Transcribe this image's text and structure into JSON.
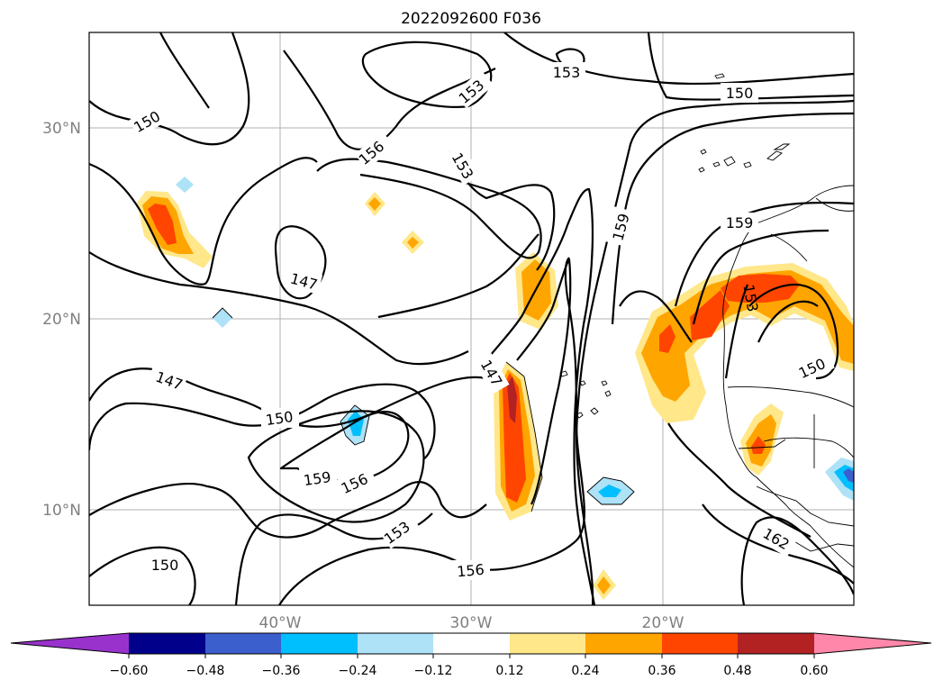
{
  "title": "2022092600 F036",
  "map": {
    "lat_range": [
      5,
      35
    ],
    "lon_range": [
      -50,
      -10
    ],
    "lat_labels": [
      {
        "lat": 30,
        "label": "30°N"
      },
      {
        "lat": 20,
        "label": "20°N"
      },
      {
        "lat": 10,
        "label": "10°N"
      }
    ],
    "lon_labels": [
      {
        "lon": -40,
        "label": "40°W"
      },
      {
        "lon": -30,
        "label": "30°W"
      },
      {
        "lon": -20,
        "label": "20°W"
      }
    ],
    "contour_labels": [
      "150",
      "153",
      "153",
      "150",
      "156",
      "153",
      "159",
      "159",
      "147",
      "147",
      "150",
      "159",
      "156",
      "153",
      "147",
      "156",
      "150",
      "150",
      "153",
      "162"
    ],
    "colors": {
      "cb_min": "#9932cc",
      "cb_1": "#00008b",
      "cb_2": "#3b5fcd",
      "cb_3": "#00bfff",
      "cb_4": "#ade2f7",
      "cb_5": "#ffffff",
      "cb_6": "#ffe78a",
      "cb_7": "#ffa500",
      "cb_8": "#ff4500",
      "cb_9": "#b22222",
      "cb_max": "#ff88aa"
    }
  },
  "colorbar": {
    "ticks": [
      "−0.60",
      "−0.48",
      "−0.36",
      "−0.24",
      "−0.12",
      "0.12",
      "0.24",
      "0.36",
      "0.48",
      "0.60"
    ]
  }
}
